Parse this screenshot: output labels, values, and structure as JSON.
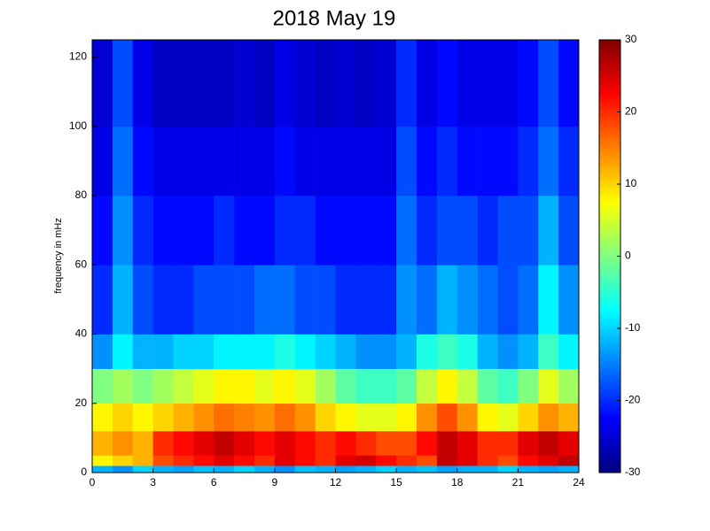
{
  "chart_data": {
    "type": "heatmap",
    "title": "2018 May 19",
    "ylabel": "frequency in mHz",
    "colormap": "jet",
    "xlim": [
      0,
      24
    ],
    "xticks": [
      0,
      3,
      6,
      9,
      12,
      15,
      18,
      21,
      24
    ],
    "ylim": [
      0,
      125
    ],
    "yticks": [
      0,
      20,
      40,
      60,
      80,
      100,
      120
    ],
    "clim": [
      -30,
      30
    ],
    "cticks": [
      -30,
      -20,
      -10,
      0,
      10,
      20,
      30
    ],
    "x_edges": [
      0,
      1,
      2,
      3,
      4,
      5,
      6,
      7,
      8,
      9,
      10,
      11,
      12,
      13,
      14,
      15,
      16,
      17,
      18,
      19,
      20,
      21,
      22,
      23,
      24
    ],
    "y_edges": [
      0,
      2,
      5,
      12,
      20,
      30,
      40,
      60,
      80,
      100,
      125
    ],
    "z": [
      [
        -12,
        -14,
        -10,
        -12,
        -13,
        -11,
        -12,
        -10,
        -12,
        -14,
        -11,
        -12,
        -13,
        -12,
        -10,
        -12,
        -11,
        -13,
        -12,
        -12,
        -10,
        -12,
        -13,
        -12
      ],
      [
        8,
        10,
        12,
        18,
        20,
        22,
        24,
        22,
        20,
        24,
        22,
        20,
        24,
        25,
        22,
        20,
        18,
        26,
        24,
        20,
        18,
        22,
        24,
        26
      ],
      [
        12,
        14,
        12,
        20,
        22,
        24,
        26,
        24,
        22,
        24,
        22,
        20,
        22,
        20,
        18,
        18,
        22,
        26,
        24,
        20,
        20,
        24,
        26,
        24
      ],
      [
        8,
        10,
        8,
        10,
        12,
        14,
        16,
        15,
        14,
        16,
        14,
        10,
        8,
        6,
        6,
        8,
        14,
        18,
        14,
        8,
        6,
        10,
        14,
        12
      ],
      [
        0,
        2,
        0,
        2,
        4,
        6,
        8,
        8,
        6,
        8,
        6,
        2,
        -2,
        -4,
        -4,
        -2,
        4,
        8,
        4,
        -2,
        -4,
        0,
        6,
        2
      ],
      [
        -14,
        -8,
        -12,
        -12,
        -10,
        -10,
        -8,
        -8,
        -8,
        -6,
        -8,
        -10,
        -12,
        -14,
        -14,
        -12,
        -6,
        -4,
        -6,
        -12,
        -14,
        -12,
        -4,
        -8
      ],
      [
        -20,
        -12,
        -18,
        -20,
        -20,
        -18,
        -18,
        -18,
        -16,
        -16,
        -18,
        -18,
        -20,
        -20,
        -20,
        -14,
        -16,
        -12,
        -14,
        -16,
        -18,
        -16,
        -8,
        -14
      ],
      [
        -22,
        -14,
        -20,
        -22,
        -22,
        -22,
        -20,
        -22,
        -22,
        -20,
        -20,
        -22,
        -22,
        -22,
        -22,
        -16,
        -20,
        -18,
        -18,
        -20,
        -18,
        -18,
        -12,
        -18
      ],
      [
        -24,
        -16,
        -22,
        -24,
        -24,
        -24,
        -24,
        -24,
        -24,
        -22,
        -24,
        -24,
        -24,
        -24,
        -24,
        -18,
        -22,
        -20,
        -22,
        -22,
        -22,
        -20,
        -16,
        -20
      ],
      [
        -25,
        -18,
        -24,
        -26,
        -26,
        -26,
        -26,
        -25,
        -26,
        -24,
        -25,
        -26,
        -25,
        -26,
        -25,
        -20,
        -24,
        -22,
        -24,
        -24,
        -24,
        -22,
        -18,
        -22
      ]
    ]
  }
}
